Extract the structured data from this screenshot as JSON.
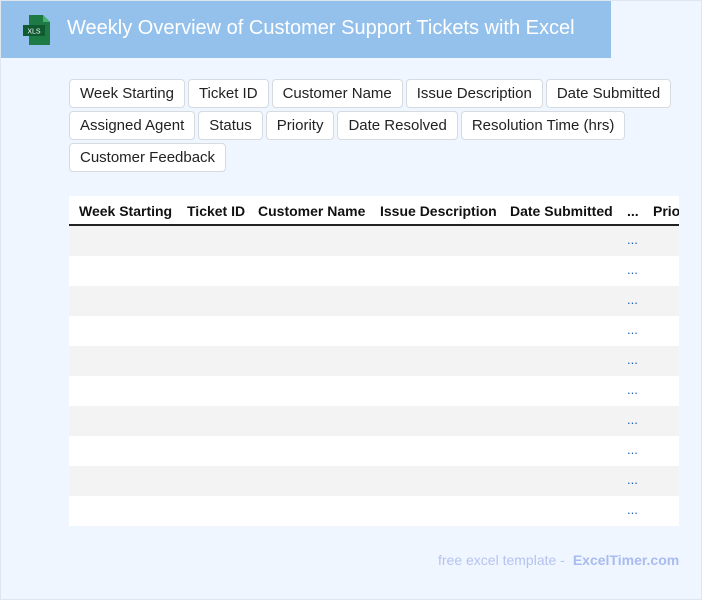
{
  "header": {
    "title": "Weekly Overview of Customer Support Tickets with Excel",
    "icon": "xls-file-icon",
    "icon_label": "XLS",
    "color": "#93c1ec"
  },
  "chips": [
    "Week Starting",
    "Ticket ID",
    "Customer Name",
    "Issue Description",
    "Date Submitted",
    "Assigned Agent",
    "Status",
    "Priority",
    "Date Resolved",
    "Resolution Time (hrs)",
    "Customer Feedback"
  ],
  "table": {
    "columns": [
      "Week Starting",
      "Ticket ID",
      "Customer Name",
      "Issue Description",
      "Date Submitted",
      "...",
      "Prio"
    ],
    "rows": [
      "...",
      "...",
      "...",
      "...",
      "...",
      "...",
      "...",
      "...",
      "...",
      "..."
    ]
  },
  "footer": {
    "text": "free excel template -",
    "brand": "ExcelTimer.com"
  }
}
